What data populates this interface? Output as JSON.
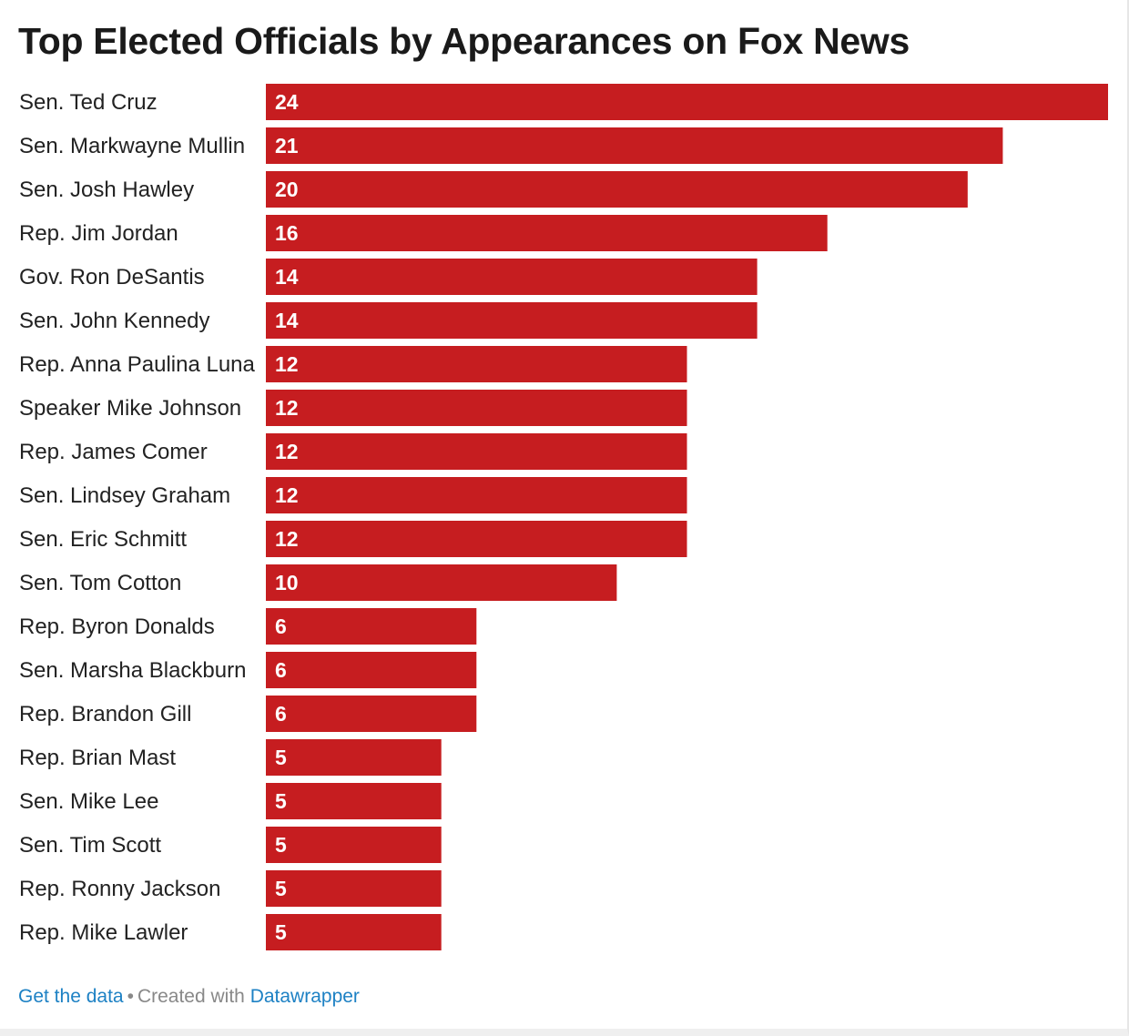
{
  "chart_data": {
    "type": "bar",
    "orientation": "horizontal",
    "title": "Top Elected Officials by Appearances on Fox News",
    "xlabel": "",
    "ylabel": "",
    "xlim": [
      0,
      24
    ],
    "grid": false,
    "bar_color": "#c61d20",
    "categories": [
      "Sen. Ted Cruz",
      "Sen. Markwayne Mullin",
      "Sen. Josh Hawley",
      "Rep. Jim Jordan",
      "Gov. Ron DeSantis",
      "Sen. John Kennedy",
      "Rep. Anna Paulina Luna",
      "Speaker Mike Johnson",
      "Rep. James Comer",
      "Sen. Lindsey Graham",
      "Sen. Eric Schmitt",
      "Sen. Tom Cotton",
      "Rep. Byron Donalds",
      "Sen. Marsha Blackburn",
      "Rep. Brandon Gill",
      "Rep. Brian Mast",
      "Sen. Mike Lee",
      "Sen. Tim Scott",
      "Rep. Ronny Jackson",
      "Rep. Mike Lawler"
    ],
    "values": [
      24,
      21,
      20,
      16,
      14,
      14,
      12,
      12,
      12,
      12,
      12,
      10,
      6,
      6,
      6,
      5,
      5,
      5,
      5,
      5
    ]
  },
  "footer": {
    "get_data_label": "Get the data",
    "separator": "•",
    "created_with_label": "Created with",
    "tool_label": "Datawrapper"
  }
}
